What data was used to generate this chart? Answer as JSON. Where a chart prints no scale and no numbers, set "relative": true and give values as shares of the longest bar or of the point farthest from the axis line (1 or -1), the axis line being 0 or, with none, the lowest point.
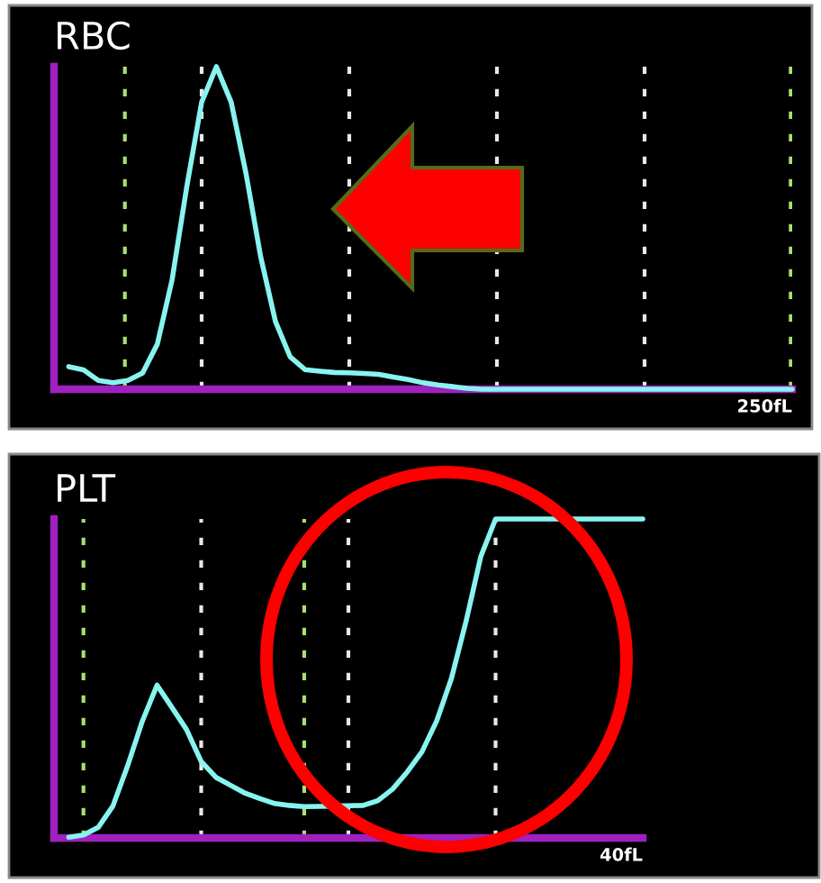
{
  "chart_data": [
    {
      "type": "line",
      "title": "RBC",
      "relative": true,
      "grid": "x",
      "annotations": [
        "250fL"
      ],
      "categories": [
        null,
        null,
        null,
        null,
        null,
        null,
        null,
        null,
        null,
        null,
        null,
        null,
        null,
        null,
        null,
        null,
        null,
        null,
        null,
        null,
        null,
        null,
        null,
        null,
        null,
        null,
        null,
        null,
        null,
        null,
        null,
        null,
        null,
        null,
        null,
        null,
        null,
        null,
        null,
        null,
        null,
        null,
        null,
        null,
        null,
        null,
        null,
        null,
        null,
        null
      ],
      "series": [
        {
          "color": "#88f4f0",
          "values": [
            0.07,
            0.06,
            0.027,
            0.02,
            0.027,
            0.05,
            0.14,
            0.34,
            0.63,
            0.89,
            1,
            0.89,
            0.67,
            0.41,
            0.21,
            0.1,
            0.061,
            0.056,
            0.052,
            0.051,
            0.049,
            0.046,
            0.038,
            0.03,
            0.02,
            0.013,
            0.008,
            0.003,
            0,
            0,
            0,
            0,
            0,
            0,
            0,
            0,
            0,
            0,
            0,
            0,
            0,
            0,
            0,
            0,
            0,
            0,
            0,
            0,
            0,
            0
          ]
        }
      ]
    },
    {
      "type": "line",
      "title": "PLT",
      "relative": true,
      "grid": "x",
      "annotations": [
        "40fL"
      ],
      "categories": [
        null,
        null,
        null,
        null,
        null,
        null,
        null,
        null,
        null,
        null,
        null,
        null,
        null,
        null,
        null,
        null,
        null,
        null,
        null,
        null,
        null,
        null,
        null,
        null,
        null,
        null,
        null,
        null,
        null,
        null,
        null,
        null,
        null,
        null,
        null,
        null,
        null,
        null,
        null,
        null
      ],
      "series": [
        {
          "color": "#88f4f0",
          "values": [
            0.002,
            0.009,
            0.033,
            0.1,
            0.226,
            0.366,
            0.479,
            0.41,
            0.34,
            0.24,
            0.19,
            0.165,
            0.14,
            0.123,
            0.108,
            0.102,
            0.098,
            0.099,
            0.1,
            0.101,
            0.102,
            0.117,
            0.153,
            0.207,
            0.27,
            0.367,
            0.5,
            0.68,
            0.883,
            1,
            1,
            1,
            1,
            1,
            1,
            1,
            1,
            1,
            1,
            1
          ]
        }
      ]
    }
  ]
}
